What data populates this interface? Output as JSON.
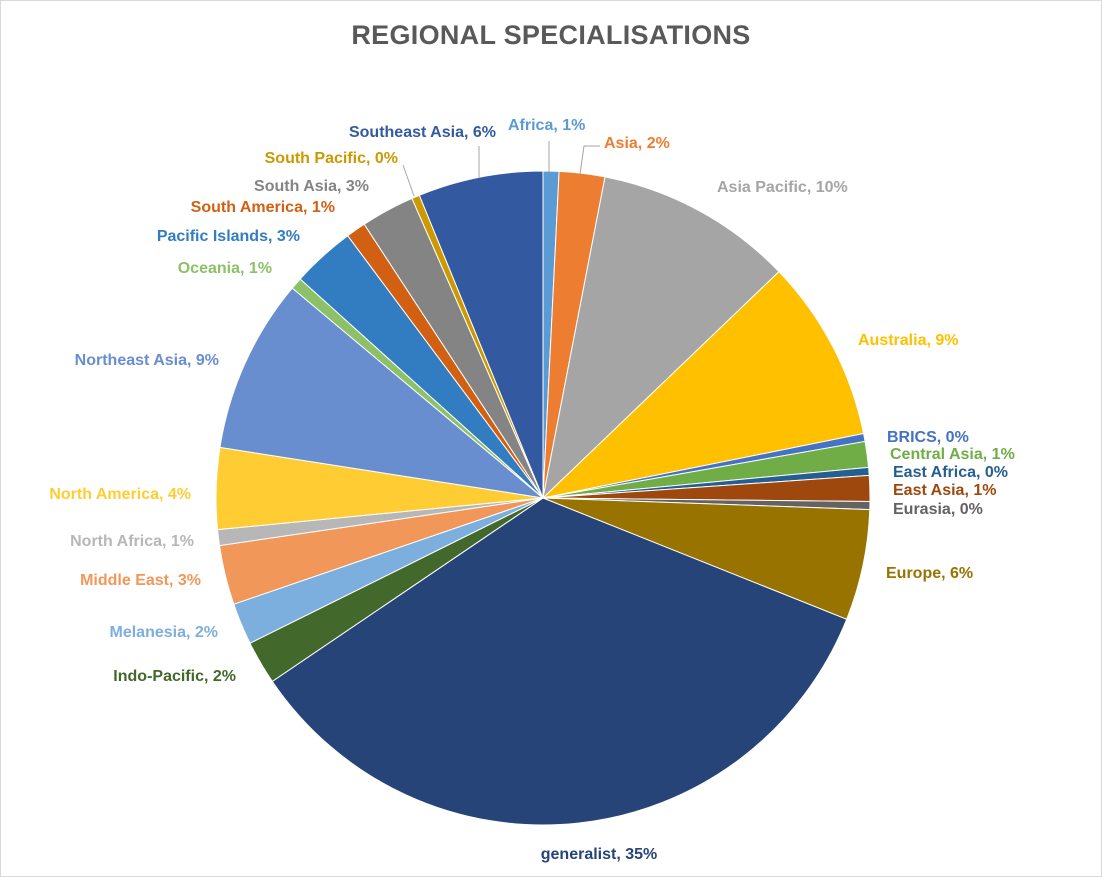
{
  "chart_data": {
    "type": "pie",
    "title": "REGIONAL SPECIALISATIONS",
    "slices": [
      {
        "label": "Africa",
        "pct_label": "1%",
        "value": 0.8,
        "color": "#5b9bd5"
      },
      {
        "label": "Asia",
        "pct_label": "2%",
        "value": 2.3,
        "color": "#ed7d31"
      },
      {
        "label": "Asia Pacific",
        "pct_label": "10%",
        "value": 10.0,
        "color": "#a5a5a5"
      },
      {
        "label": "Australia",
        "pct_label": "9%",
        "value": 9.2,
        "color": "#ffc000"
      },
      {
        "label": "BRICS",
        "pct_label": "0%",
        "value": 0.4,
        "color": "#4472c4"
      },
      {
        "label": "Central Asia",
        "pct_label": "1%",
        "value": 1.3,
        "color": "#70ad47"
      },
      {
        "label": "East Africa",
        "pct_label": "0%",
        "value": 0.4,
        "color": "#255e91"
      },
      {
        "label": "East Asia",
        "pct_label": "1%",
        "value": 1.3,
        "color": "#9e480e"
      },
      {
        "label": "Eurasia",
        "pct_label": "0%",
        "value": 0.4,
        "color": "#636363"
      },
      {
        "label": "Europe",
        "pct_label": "6%",
        "value": 5.6,
        "color": "#997300"
      },
      {
        "label": "generalist",
        "pct_label": "35%",
        "value": 35.2,
        "color": "#264478"
      },
      {
        "label": "Indo-Pacific",
        "pct_label": "2%",
        "value": 2.2,
        "color": "#43682b"
      },
      {
        "label": "Melanesia",
        "pct_label": "2%",
        "value": 2.1,
        "color": "#7cafdd"
      },
      {
        "label": "Middle East",
        "pct_label": "3%",
        "value": 3.0,
        "color": "#f1975a"
      },
      {
        "label": "North Africa",
        "pct_label": "1%",
        "value": 0.8,
        "color": "#b7b7b7"
      },
      {
        "label": "North America",
        "pct_label": "4%",
        "value": 4.1,
        "color": "#ffcd33"
      },
      {
        "label": "Northeast Asia",
        "pct_label": "9%",
        "value": 8.8,
        "color": "#698ed0"
      },
      {
        "label": "Oceania",
        "pct_label": "1%",
        "value": 0.6,
        "color": "#8cc168"
      },
      {
        "label": "Pacific Islands",
        "pct_label": "3%",
        "value": 3.2,
        "color": "#327dc2"
      },
      {
        "label": "South America",
        "pct_label": "1%",
        "value": 1.0,
        "color": "#d26012"
      },
      {
        "label": "South Asia",
        "pct_label": "3%",
        "value": 2.7,
        "color": "#848484"
      },
      {
        "label": "South Pacific",
        "pct_label": "0%",
        "value": 0.4,
        "color": "#cc9a00"
      },
      {
        "label": "Southeast Asia",
        "pct_label": "6%",
        "value": 6.3,
        "color": "#335aa1"
      }
    ],
    "label_colors": {
      "Africa": "#5b9bd5",
      "Asia": "#ed7d31",
      "Asia Pacific": "#a5a5a5",
      "Australia": "#ffc000",
      "BRICS": "#4472c4",
      "Central Asia": "#70ad47",
      "East Africa": "#255e91",
      "East Asia": "#9e480e",
      "Eurasia": "#636363",
      "Europe": "#997300",
      "generalist": "#264478",
      "Indo-Pacific": "#43682b",
      "Melanesia": "#7cafdd",
      "Middle East": "#f1975a",
      "North Africa": "#b7b7b7",
      "North America": "#ffcd33",
      "Northeast Asia": "#698ed0",
      "Oceania": "#8cc168",
      "Pacific Islands": "#327dc2",
      "South America": "#d26012",
      "South Asia": "#848484",
      "South Pacific": "#cc9a00",
      "Southeast Asia": "#335aa1"
    },
    "legend": "none",
    "data_labels": "category name, percentage"
  }
}
